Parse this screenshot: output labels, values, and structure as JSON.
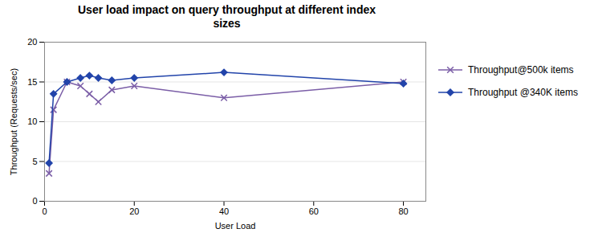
{
  "chart_data": {
    "type": "line",
    "title": "User load impact on query throughput at different index\nsizes",
    "xlabel": "User Load",
    "ylabel": "Throughput (Requests/sec)",
    "x": [
      1,
      2,
      5,
      8,
      10,
      12,
      15,
      20,
      40,
      80
    ],
    "series": [
      {
        "name": "Throughput@500k items",
        "color": "#7B5EA7",
        "marker": "x",
        "values": [
          3.5,
          11.5,
          15.0,
          14.5,
          13.5,
          12.5,
          14.0,
          14.5,
          13.0,
          15.0
        ]
      },
      {
        "name": "Throughput @340K items",
        "color": "#2244AA",
        "marker": "diamond",
        "values": [
          4.8,
          13.5,
          15.0,
          15.5,
          15.8,
          15.5,
          15.2,
          15.5,
          16.2,
          14.8
        ]
      }
    ],
    "xlim": [
      0,
      85
    ],
    "ylim": [
      0,
      20
    ],
    "xticks": [
      0,
      20,
      40,
      60,
      80
    ],
    "yticks": [
      0,
      5,
      10,
      15,
      20
    ],
    "grid": "y",
    "legend": "right"
  }
}
